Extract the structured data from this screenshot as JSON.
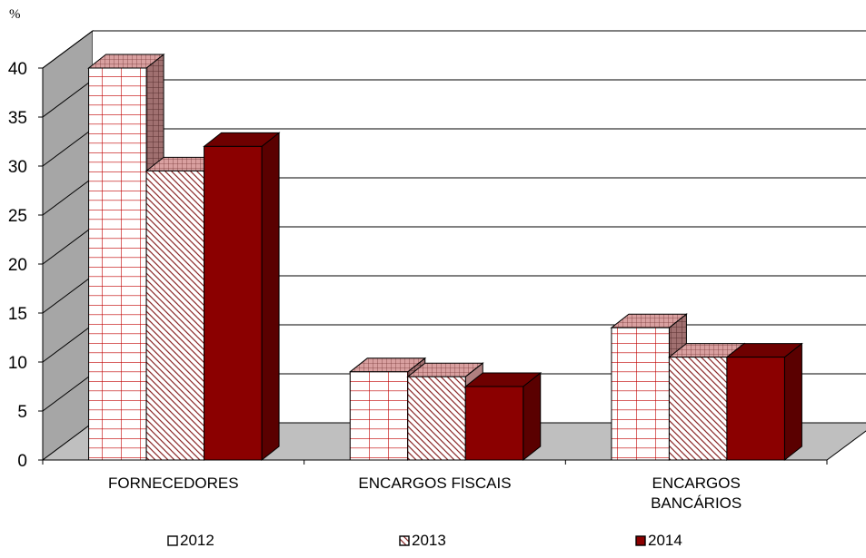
{
  "chart_data": {
    "type": "bar",
    "unit_label": "%",
    "categories": [
      "FORNECEDORES",
      "ENCARGOS FISCAIS",
      "ENCARGOS BANCÁRIOS"
    ],
    "series": [
      {
        "name": "2012",
        "values": [
          40,
          9,
          13.5
        ]
      },
      {
        "name": "2013",
        "values": [
          29.5,
          8.5,
          10.5
        ]
      },
      {
        "name": "2014",
        "values": [
          32,
          7.5,
          10.5
        ]
      }
    ],
    "ylim": [
      0,
      40
    ],
    "yticks": [
      0,
      5,
      10,
      15,
      20,
      25,
      30,
      35,
      40
    ],
    "grid": true,
    "legend_position": "bottom",
    "colors": {
      "wall": "#a6a6a6",
      "floor": "#bfbfbf",
      "s2012_fill": "#ffffff",
      "s2012_lines": "#c00000",
      "s2013_fill": "#ffffff",
      "s2013_lines": "#8b2a2a",
      "s2014_fill": "#8b0000",
      "s2014_side": "#5a0000"
    }
  }
}
